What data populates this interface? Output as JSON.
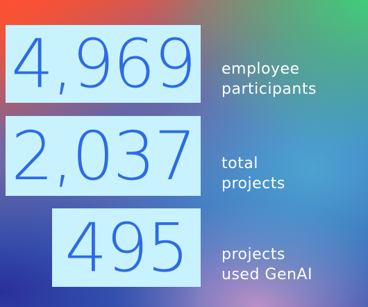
{
  "stats": [
    {
      "value": "4,969",
      "label_line1": "employee",
      "label_line2": "participants"
    },
    {
      "value": "2,037",
      "label_line1": "total",
      "label_line2": "projects"
    },
    {
      "value": "495",
      "label_line1": "projects",
      "label_line2": "used GenAI"
    }
  ],
  "colors": {
    "box_background": "#c8f2fe",
    "number_text": "#2d6be6",
    "label_text": "#ffffff"
  }
}
